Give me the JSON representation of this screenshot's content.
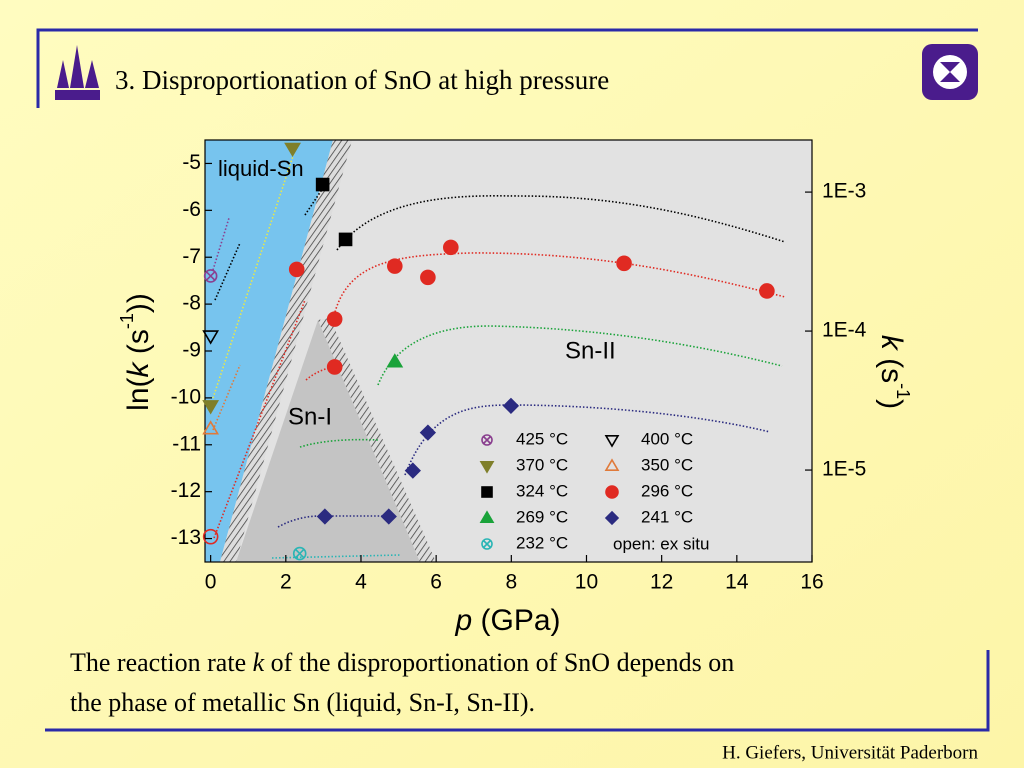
{
  "header": {
    "title": "3. Disproportionation of SnO at high pressure"
  },
  "chart_data": {
    "type": "scatter",
    "xlabel": [
      "p",
      " (GPa)"
    ],
    "ylabel": [
      "ln(",
      "k",
      " (s",
      "-1",
      "))"
    ],
    "y2label": [
      "k",
      " (s",
      "-1",
      ")"
    ],
    "xlim": [
      -0.15,
      16
    ],
    "xticks": [
      0,
      2,
      4,
      6,
      8,
      10,
      12,
      14,
      16
    ],
    "ylim": [
      -13.5,
      -4.5
    ],
    "yticks": [
      -5,
      -6,
      -7,
      -8,
      -9,
      -10,
      -11,
      -12,
      -13
    ],
    "y2lim": [
      2.18e-06,
      0.00237
    ],
    "y2scale": "log",
    "y2ticks": [
      {
        "value": 0.001,
        "label": "1E-3"
      },
      {
        "value": 0.0001,
        "label": "1E-4"
      },
      {
        "value": 1e-05,
        "label": "1E-5"
      }
    ],
    "annotations": [
      "liquid-Sn",
      "Sn-I",
      "Sn-II",
      "open: ex situ"
    ],
    "series": [
      {
        "name": "425 °C",
        "color": "#8a3f8f",
        "marker": "circle-x",
        "x": [
          0
        ],
        "values": [
          -7.4
        ],
        "open": [
          true
        ]
      },
      {
        "name": "400 °C",
        "color": "#000000",
        "marker": "triangle-down",
        "x": [
          0
        ],
        "values": [
          -8.68
        ],
        "open": [
          true
        ]
      },
      {
        "name": "370 °C",
        "color": "#7f7f2a",
        "marker": "triangle-down",
        "x": [
          2.18,
          0
        ],
        "values": [
          -4.68,
          -10.17
        ],
        "open": [
          false,
          false
        ]
      },
      {
        "name": "350 °C",
        "color": "#e07a3a",
        "marker": "triangle-up",
        "x": [
          0
        ],
        "values": [
          -10.66
        ],
        "open": [
          true
        ]
      },
      {
        "name": "324 °C",
        "color": "#000000",
        "marker": "square",
        "x": [
          2.98,
          3.59
        ],
        "values": [
          -5.45,
          -6.62
        ],
        "open": [
          false,
          false
        ]
      },
      {
        "name": "296 °C",
        "color": "#e02a22",
        "marker": "circle",
        "x": [
          2.29,
          3.3,
          4.9,
          5.78,
          6.39,
          11.0,
          14.8,
          3.3,
          0
        ],
        "values": [
          -7.26,
          -8.32,
          -7.19,
          -7.43,
          -6.79,
          -7.13,
          -7.72,
          -9.34,
          -12.96
        ],
        "open": [
          false,
          false,
          false,
          false,
          false,
          false,
          false,
          false,
          true
        ]
      },
      {
        "name": "269 °C",
        "color": "#1aa33a",
        "marker": "triangle-up",
        "x": [
          4.9
        ],
        "values": [
          -9.23
        ],
        "open": [
          false
        ]
      },
      {
        "name": "241 °C",
        "color": "#2b2b80",
        "marker": "diamond",
        "x": [
          7.99,
          5.78,
          5.38,
          3.04,
          4.74
        ],
        "values": [
          -10.17,
          -10.74,
          -11.55,
          -12.53,
          -12.53
        ],
        "open": [
          false,
          false,
          false,
          false,
          false
        ]
      },
      {
        "name": "232 °C",
        "color": "#2ab5b5",
        "marker": "circle-x",
        "x": [
          2.37
        ],
        "values": [
          -13.32
        ],
        "open": [
          true
        ]
      }
    ]
  },
  "caption": {
    "lines": [
      [
        "The reaction rate ",
        "k",
        " of the disproportionation of SnO depends on"
      ],
      [
        "the phase of metallic Sn (liquid, Sn-I, Sn-II)."
      ]
    ]
  },
  "footer": "H. Giefers, Universität Paderborn"
}
